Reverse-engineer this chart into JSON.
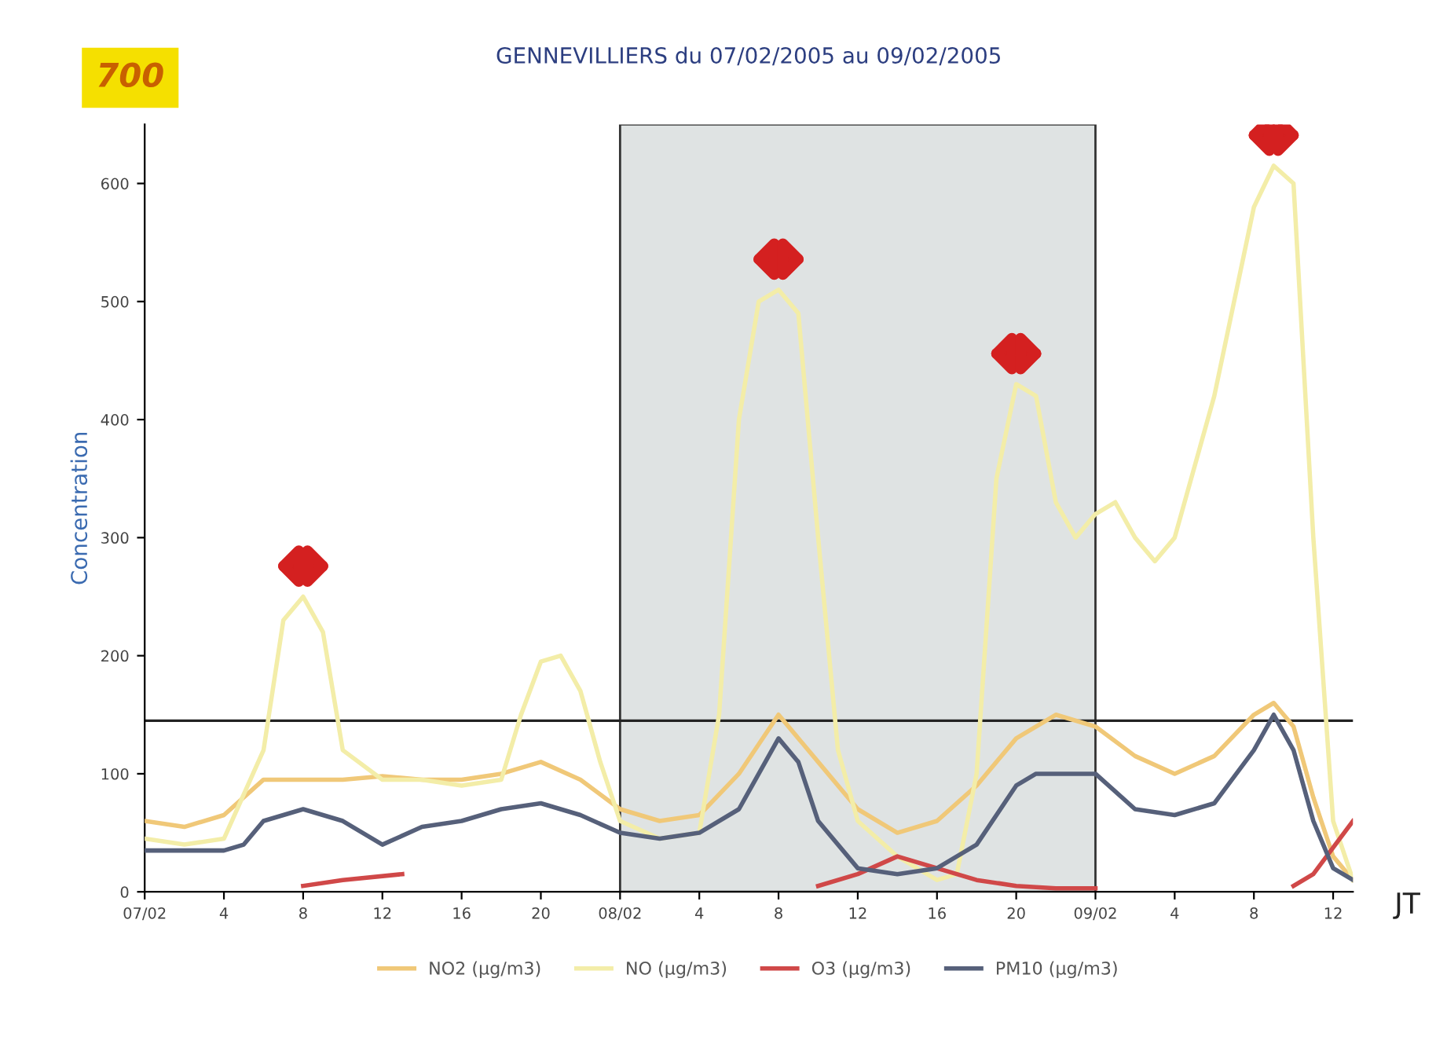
{
  "chart_data": {
    "type": "line",
    "title": "GENNEVILLIERS du 07/02/2005 au 09/02/2005",
    "ylabel": "Concentration",
    "xlabel": "JT",
    "annotations": [
      "700"
    ],
    "xlim": [
      "2005-02-07T00:00",
      "2005-02-09T13:00"
    ],
    "xticks": [
      {
        "value": "2005-02-07T00:00",
        "label": "07/02"
      },
      {
        "value": "2005-02-07T04:00",
        "label": "4"
      },
      {
        "value": "2005-02-07T08:00",
        "label": "8"
      },
      {
        "value": "2005-02-07T12:00",
        "label": "12"
      },
      {
        "value": "2005-02-07T16:00",
        "label": "16"
      },
      {
        "value": "2005-02-07T20:00",
        "label": "20"
      },
      {
        "value": "2005-02-08T00:00",
        "label": "08/02"
      },
      {
        "value": "2005-02-08T04:00",
        "label": "4"
      },
      {
        "value": "2005-02-08T08:00",
        "label": "8"
      },
      {
        "value": "2005-02-08T12:00",
        "label": "12"
      },
      {
        "value": "2005-02-08T16:00",
        "label": "16"
      },
      {
        "value": "2005-02-08T20:00",
        "label": "20"
      },
      {
        "value": "2005-02-09T00:00",
        "label": "09/02"
      },
      {
        "value": "2005-02-09T04:00",
        "label": "4"
      },
      {
        "value": "2005-02-09T08:00",
        "label": "8"
      },
      {
        "value": "2005-02-09T12:00",
        "label": "12"
      }
    ],
    "ylim": [
      0,
      650
    ],
    "yticks": [
      0,
      100,
      200,
      300,
      400,
      500,
      600
    ],
    "legend": "bottom",
    "marker": "none",
    "ref_lines": [
      {
        "axis": "y",
        "value": 145,
        "color": "#222222"
      }
    ],
    "bands": [
      {
        "axis": "x",
        "from": "2005-02-08T00:00",
        "to": "2005-02-09T00:00",
        "color": "#dfe3e3"
      }
    ],
    "series": [
      {
        "name": "NO2 (µg/m3)",
        "color": "#f0c878",
        "x": [
          "2005-02-07T00:00",
          "2005-02-07T02:00",
          "2005-02-07T04:00",
          "2005-02-07T06:00",
          "2005-02-07T08:00",
          "2005-02-07T10:00",
          "2005-02-07T12:00",
          "2005-02-07T14:00",
          "2005-02-07T16:00",
          "2005-02-07T18:00",
          "2005-02-07T20:00",
          "2005-02-07T22:00",
          "2005-02-08T00:00",
          "2005-02-08T02:00",
          "2005-02-08T04:00",
          "2005-02-08T06:00",
          "2005-02-08T08:00",
          "2005-02-08T10:00",
          "2005-02-08T12:00",
          "2005-02-08T14:00",
          "2005-02-08T16:00",
          "2005-02-08T18:00",
          "2005-02-08T20:00",
          "2005-02-08T22:00",
          "2005-02-09T00:00",
          "2005-02-09T02:00",
          "2005-02-09T04:00",
          "2005-02-09T06:00",
          "2005-02-09T08:00",
          "2005-02-09T09:00",
          "2005-02-09T10:00",
          "2005-02-09T11:00",
          "2005-02-09T12:00",
          "2005-02-09T13:00"
        ],
        "values": [
          60,
          55,
          65,
          95,
          95,
          95,
          98,
          95,
          95,
          100,
          110,
          95,
          70,
          60,
          65,
          100,
          150,
          110,
          70,
          50,
          60,
          90,
          130,
          150,
          140,
          115,
          100,
          115,
          150,
          160,
          140,
          80,
          30,
          10
        ]
      },
      {
        "name": "NO (µg/m3)",
        "color": "#f3eda8",
        "x": [
          "2005-02-07T00:00",
          "2005-02-07T02:00",
          "2005-02-07T04:00",
          "2005-02-07T06:00",
          "2005-02-07T07:00",
          "2005-02-07T08:00",
          "2005-02-07T09:00",
          "2005-02-07T10:00",
          "2005-02-07T12:00",
          "2005-02-07T14:00",
          "2005-02-07T16:00",
          "2005-02-07T18:00",
          "2005-02-07T19:00",
          "2005-02-07T20:00",
          "2005-02-07T21:00",
          "2005-02-07T22:00",
          "2005-02-07T23:00",
          "2005-02-08T00:00",
          "2005-02-08T02:00",
          "2005-02-08T04:00",
          "2005-02-08T05:00",
          "2005-02-08T06:00",
          "2005-02-08T07:00",
          "2005-02-08T08:00",
          "2005-02-08T09:00",
          "2005-02-08T10:00",
          "2005-02-08T11:00",
          "2005-02-08T12:00",
          "2005-02-08T14:00",
          "2005-02-08T16:00",
          "2005-02-08T17:00",
          "2005-02-08T18:00",
          "2005-02-08T19:00",
          "2005-02-08T20:00",
          "2005-02-08T21:00",
          "2005-02-08T22:00",
          "2005-02-08T23:00",
          "2005-02-09T00:00",
          "2005-02-09T01:00",
          "2005-02-09T02:00",
          "2005-02-09T03:00",
          "2005-02-09T04:00",
          "2005-02-09T06:00",
          "2005-02-09T08:00",
          "2005-02-09T09:00",
          "2005-02-09T10:00",
          "2005-02-09T11:00",
          "2005-02-09T12:00",
          "2005-02-09T13:00"
        ],
        "values": [
          45,
          40,
          45,
          120,
          230,
          250,
          220,
          120,
          95,
          95,
          90,
          95,
          150,
          195,
          200,
          170,
          110,
          60,
          45,
          50,
          150,
          400,
          500,
          510,
          490,
          300,
          120,
          60,
          30,
          10,
          15,
          100,
          350,
          430,
          420,
          330,
          300,
          320,
          330,
          300,
          280,
          300,
          420,
          580,
          615,
          600,
          300,
          60,
          10
        ]
      },
      {
        "name": "O3 (µg/m3)",
        "color": "#d04848",
        "x": [
          "2005-02-07T08:00",
          "2005-02-07T10:00",
          "2005-02-07T13:00",
          "2005-02-07T14:00",
          "2005-02-08T10:00",
          "2005-02-08T12:00",
          "2005-02-08T14:00",
          "2005-02-08T16:00",
          "2005-02-08T18:00",
          "2005-02-08T20:00",
          "2005-02-08T22:00",
          "2005-02-09T00:00",
          "2005-02-09T02:00",
          "2005-02-09T10:00",
          "2005-02-09T11:00",
          "2005-02-09T13:00"
        ],
        "values": [
          5,
          10,
          15,
          null,
          5,
          15,
          30,
          20,
          10,
          5,
          3,
          3,
          null,
          5,
          15,
          60
        ]
      },
      {
        "name": "PM10 (µg/m3)",
        "color": "#56607a",
        "x": [
          "2005-02-07T00:00",
          "2005-02-07T02:00",
          "2005-02-07T04:00",
          "2005-02-07T05:00",
          "2005-02-07T06:00",
          "2005-02-07T08:00",
          "2005-02-07T10:00",
          "2005-02-07T12:00",
          "2005-02-07T14:00",
          "2005-02-07T16:00",
          "2005-02-07T18:00",
          "2005-02-07T20:00",
          "2005-02-07T22:00",
          "2005-02-08T00:00",
          "2005-02-08T02:00",
          "2005-02-08T04:00",
          "2005-02-08T06:00",
          "2005-02-08T08:00",
          "2005-02-08T09:00",
          "2005-02-08T10:00",
          "2005-02-08T12:00",
          "2005-02-08T14:00",
          "2005-02-08T16:00",
          "2005-02-08T18:00",
          "2005-02-08T20:00",
          "2005-02-08T21:00",
          "2005-02-08T22:00",
          "2005-02-09T00:00",
          "2005-02-09T02:00",
          "2005-02-09T04:00",
          "2005-02-09T06:00",
          "2005-02-09T08:00",
          "2005-02-09T09:00",
          "2005-02-09T10:00",
          "2005-02-09T11:00",
          "2005-02-09T12:00",
          "2005-02-09T13:00"
        ],
        "values": [
          35,
          35,
          35,
          40,
          60,
          70,
          60,
          40,
          55,
          60,
          70,
          75,
          65,
          50,
          45,
          50,
          70,
          130,
          110,
          60,
          20,
          15,
          20,
          40,
          90,
          100,
          100,
          100,
          70,
          65,
          75,
          120,
          150,
          120,
          60,
          20,
          10
        ]
      }
    ]
  }
}
